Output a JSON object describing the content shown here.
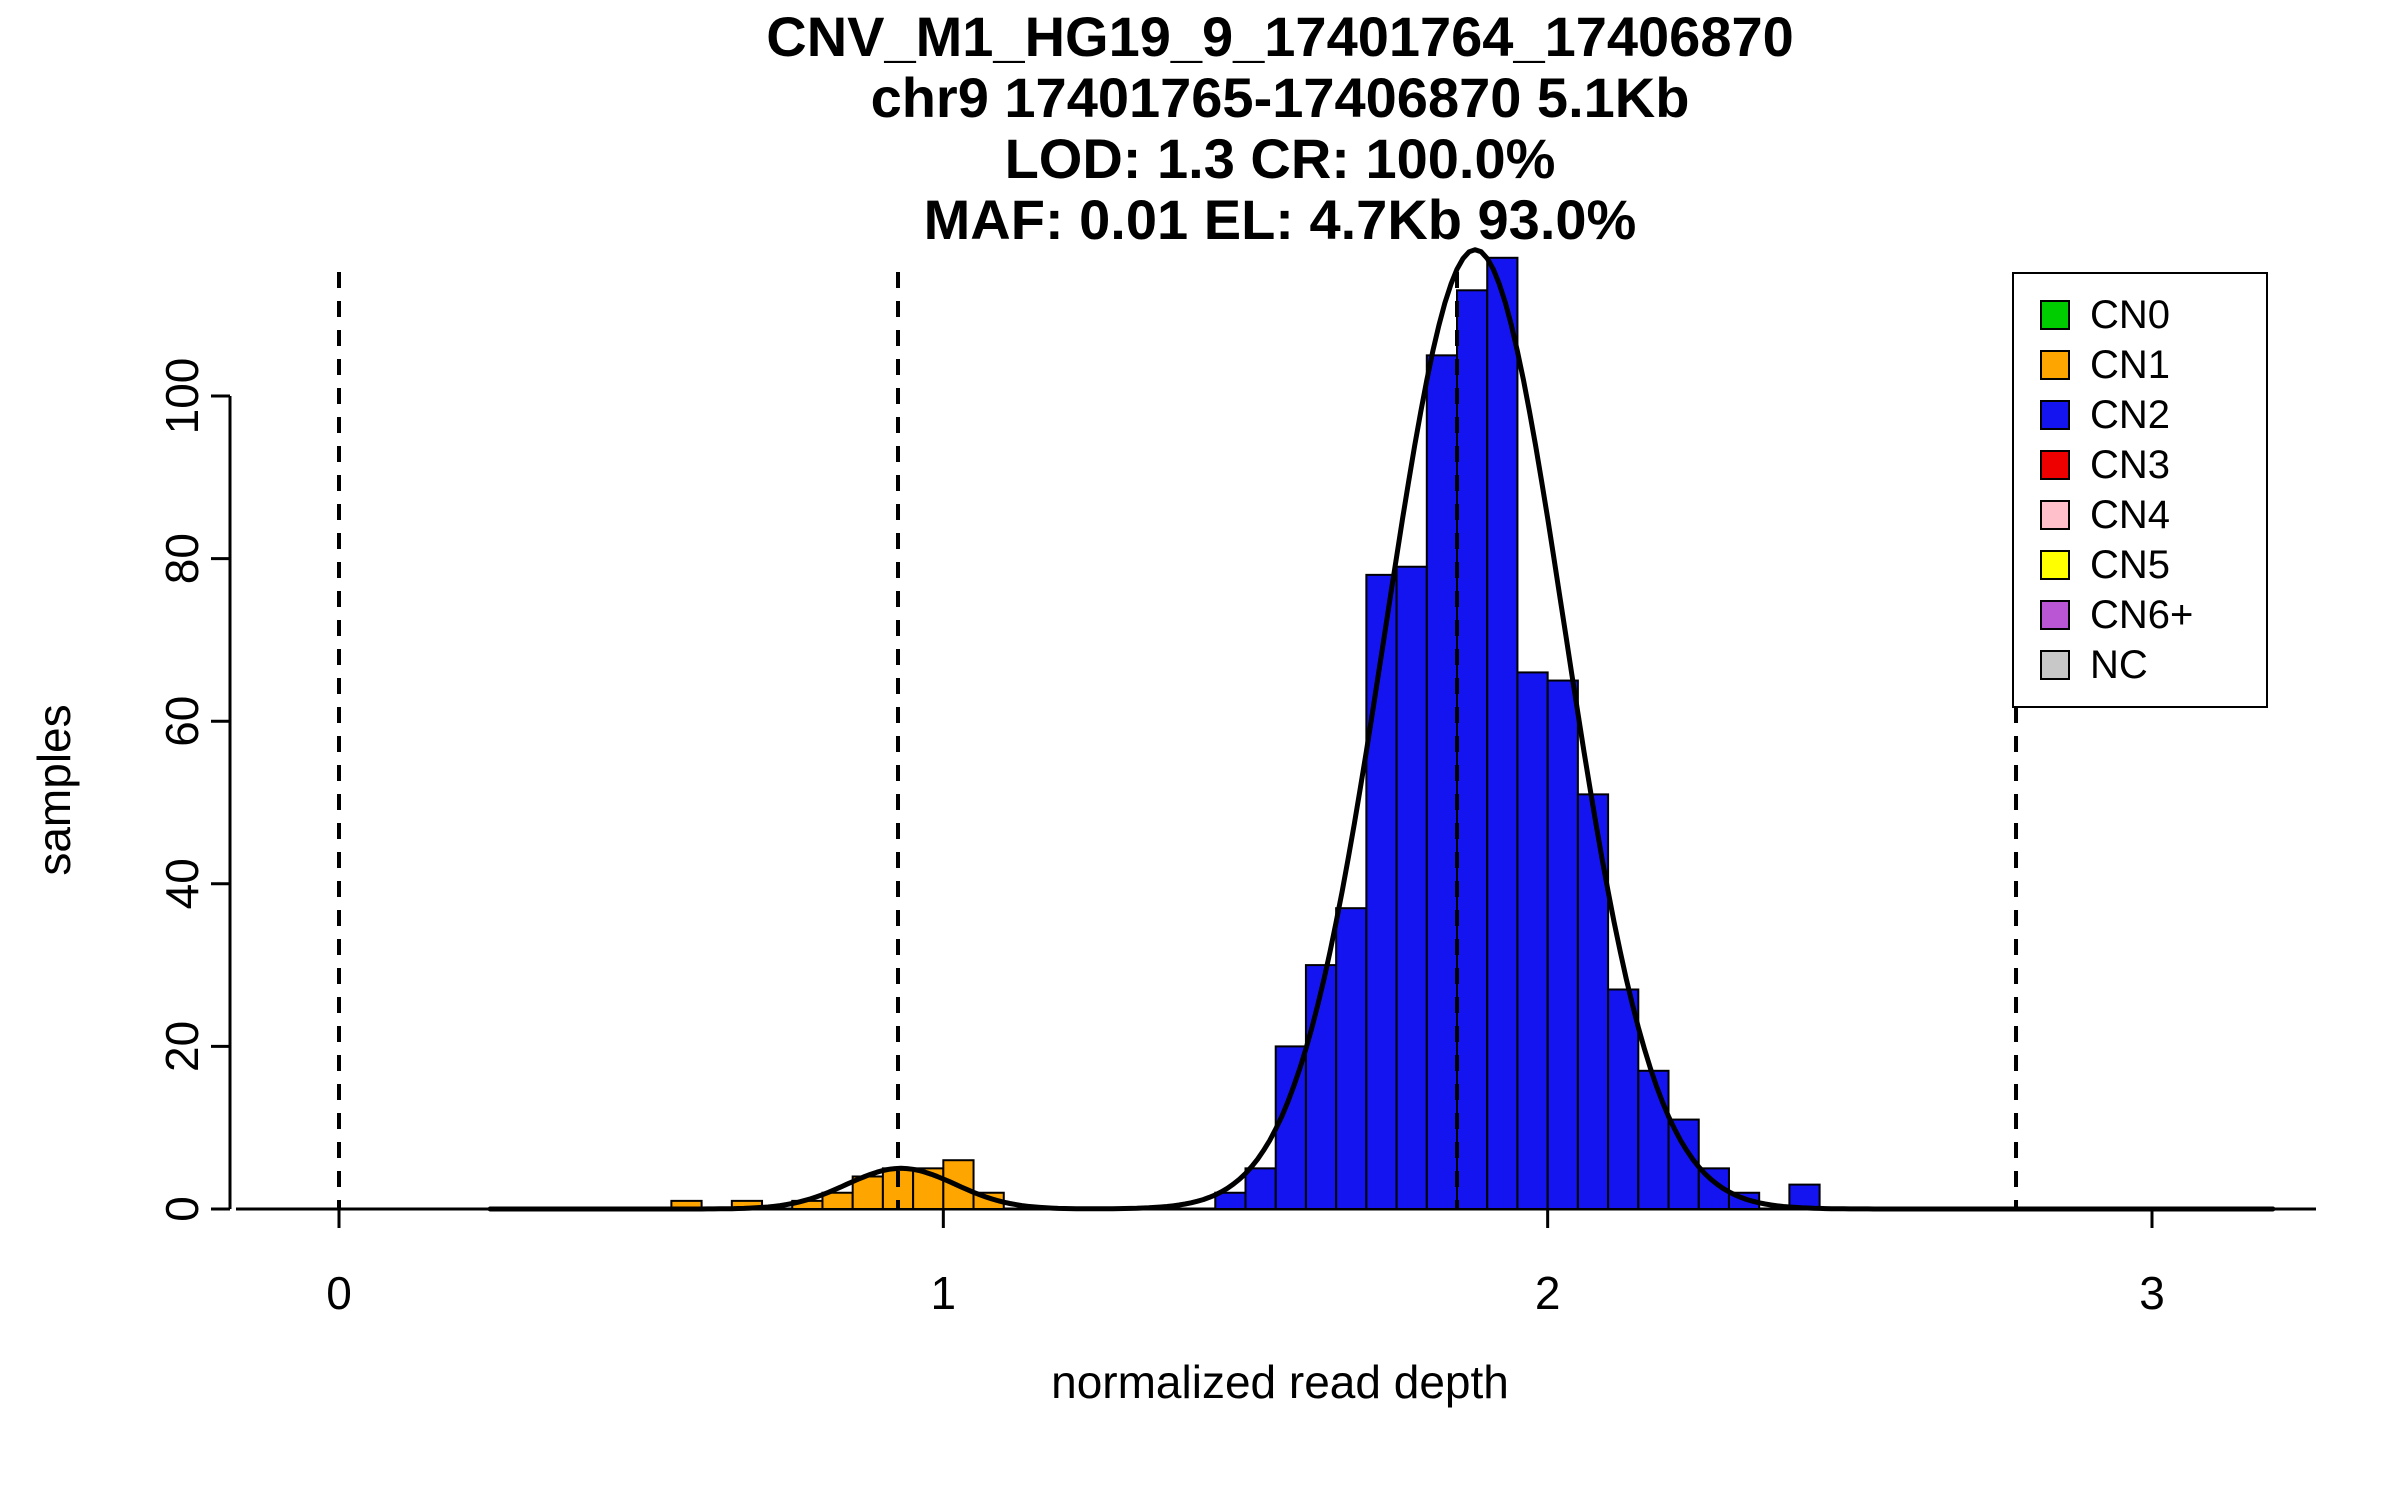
{
  "chart_data": {
    "type": "bar",
    "chart_kind": "histogram-with-gaussian-fit",
    "title_lines": [
      "CNV_M1_HG19_9_17401764_17406870",
      "chr9 17401765-17406870 5.1Kb",
      "LOD: 1.3 CR: 100.0%",
      "MAF: 0.01 EL: 4.7Kb 93.0%"
    ],
    "xlabel": "normalized read depth",
    "ylabel": "samples",
    "xlim": [
      -0.16,
      3.27
    ],
    "ylim": [
      0,
      118
    ],
    "xticks": [
      0,
      1,
      2,
      3
    ],
    "yticks": [
      0,
      20,
      40,
      60,
      80,
      100
    ],
    "grid": false,
    "bin_width": 0.05,
    "dashed_vlines_x": [
      0,
      0.925,
      1.85,
      2.775
    ],
    "series": [
      {
        "name": "CN1",
        "color": "#FFA500",
        "bars": [
          {
            "x": 0.55,
            "count": 1
          },
          {
            "x": 0.65,
            "count": 1
          },
          {
            "x": 0.75,
            "count": 1
          },
          {
            "x": 0.8,
            "count": 2
          },
          {
            "x": 0.85,
            "count": 4
          },
          {
            "x": 0.9,
            "count": 5
          },
          {
            "x": 0.95,
            "count": 5
          },
          {
            "x": 1.0,
            "count": 6
          },
          {
            "x": 1.05,
            "count": 2
          }
        ]
      },
      {
        "name": "CN2",
        "color": "#1414F0",
        "bars": [
          {
            "x": 1.45,
            "count": 2
          },
          {
            "x": 1.5,
            "count": 5
          },
          {
            "x": 1.55,
            "count": 20
          },
          {
            "x": 1.6,
            "count": 30
          },
          {
            "x": 1.65,
            "count": 37
          },
          {
            "x": 1.7,
            "count": 78
          },
          {
            "x": 1.75,
            "count": 79
          },
          {
            "x": 1.8,
            "count": 105
          },
          {
            "x": 1.85,
            "count": 113
          },
          {
            "x": 1.9,
            "count": 117
          },
          {
            "x": 1.95,
            "count": 66
          },
          {
            "x": 2.0,
            "count": 65
          },
          {
            "x": 2.05,
            "count": 51
          },
          {
            "x": 2.1,
            "count": 27
          },
          {
            "x": 2.15,
            "count": 17
          },
          {
            "x": 2.2,
            "count": 11
          },
          {
            "x": 2.25,
            "count": 5
          },
          {
            "x": 2.3,
            "count": 2
          },
          {
            "x": 2.4,
            "count": 3
          }
        ]
      }
    ],
    "fit_curve": {
      "color": "#000000",
      "components": [
        {
          "mean": 0.93,
          "sd": 0.09,
          "amplitude": 5
        },
        {
          "mean": 1.88,
          "sd": 0.148,
          "amplitude": 118
        }
      ]
    },
    "legend": {
      "position": "top-right",
      "items": [
        {
          "label": "CN0",
          "color": "#00CD00"
        },
        {
          "label": "CN1",
          "color": "#FFA500"
        },
        {
          "label": "CN2",
          "color": "#1414F0"
        },
        {
          "label": "CN3",
          "color": "#EE0000"
        },
        {
          "label": "CN4",
          "color": "#FFC0CB"
        },
        {
          "label": "CN5",
          "color": "#FFFF00"
        },
        {
          "label": "CN6+",
          "color": "#BA55D3"
        },
        {
          "label": "NC",
          "color": "#C8C8C8"
        }
      ]
    }
  }
}
